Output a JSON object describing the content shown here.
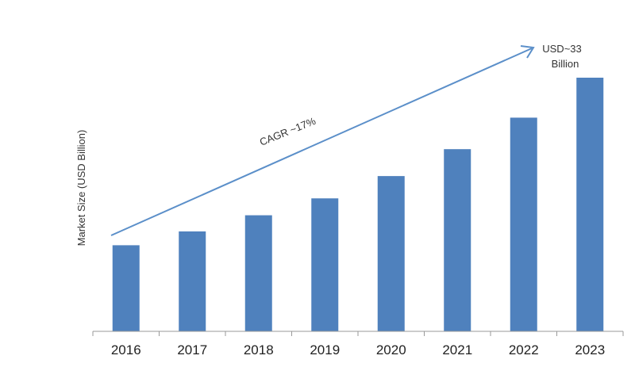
{
  "chart_data": {
    "type": "bar",
    "title": "",
    "xlabel": "",
    "ylabel": "Market Size (USD Billion)",
    "categories": [
      "2016",
      "2017",
      "2018",
      "2019",
      "2020",
      "2021",
      "2022",
      "2023"
    ],
    "values": [
      11.2,
      13.0,
      15.1,
      17.3,
      20.2,
      23.7,
      27.8,
      33
    ],
    "ylim": [
      0,
      33
    ],
    "grid": false,
    "legend": "none",
    "bar_color": "#4f81bd",
    "annotations": {
      "cagr": "CAGR ~17%",
      "end_value_line1": "USD~33",
      "end_value_line2": "Billion"
    },
    "arrow_color": "#5b8fc9"
  }
}
